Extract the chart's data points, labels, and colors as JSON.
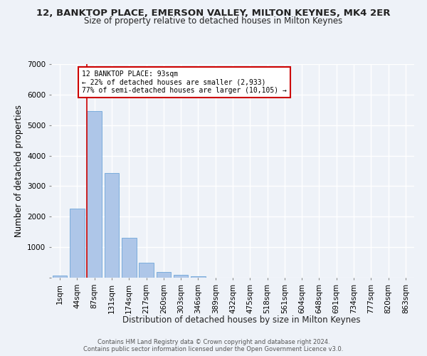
{
  "title": "12, BANKTOP PLACE, EMERSON VALLEY, MILTON KEYNES, MK4 2ER",
  "subtitle": "Size of property relative to detached houses in Milton Keynes",
  "xlabel": "Distribution of detached houses by size in Milton Keynes",
  "ylabel": "Number of detached properties",
  "footer_line1": "Contains HM Land Registry data © Crown copyright and database right 2024.",
  "footer_line2": "Contains public sector information licensed under the Open Government Licence v3.0.",
  "bar_labels": [
    "1sqm",
    "44sqm",
    "87sqm",
    "131sqm",
    "174sqm",
    "217sqm",
    "260sqm",
    "303sqm",
    "346sqm",
    "389sqm",
    "432sqm",
    "475sqm",
    "518sqm",
    "561sqm",
    "604sqm",
    "648sqm",
    "691sqm",
    "734sqm",
    "777sqm",
    "820sqm",
    "863sqm"
  ],
  "bar_values": [
    70,
    2270,
    5470,
    3420,
    1310,
    480,
    195,
    85,
    45,
    0,
    0,
    0,
    0,
    0,
    0,
    0,
    0,
    0,
    0,
    0,
    0
  ],
  "bar_color": "#aec6e8",
  "bar_edge_color": "#5b9bd5",
  "highlight_bar_index": 2,
  "highlight_color": "#cc0000",
  "annotation_title": "12 BANKTOP PLACE: 93sqm",
  "annotation_line1": "← 22% of detached houses are smaller (2,933)",
  "annotation_line2": "77% of semi-detached houses are larger (10,105) →",
  "ylim": [
    0,
    7000
  ],
  "yticks": [
    0,
    1000,
    2000,
    3000,
    4000,
    5000,
    6000,
    7000
  ],
  "background_color": "#eef2f8",
  "plot_bg_color": "#eef2f8",
  "grid_color": "#ffffff",
  "title_fontsize": 9.5,
  "subtitle_fontsize": 8.5,
  "xlabel_fontsize": 8.5,
  "ylabel_fontsize": 8.5,
  "tick_fontsize": 7.5,
  "footer_fontsize": 6.0
}
